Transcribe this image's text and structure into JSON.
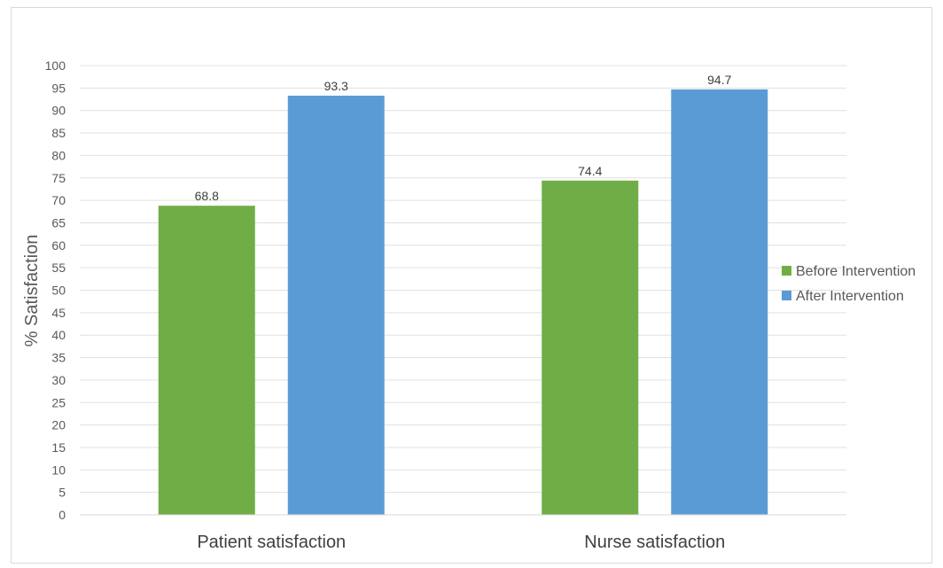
{
  "chart_data": {
    "type": "bar",
    "categories": [
      "Patient satisfaction",
      "Nurse satisfaction"
    ],
    "series": [
      {
        "name": "Before Intervention",
        "values": [
          68.8,
          74.4
        ],
        "color": "#70ad47"
      },
      {
        "name": "After Intervention",
        "values": [
          93.3,
          94.7
        ],
        "color": "#5b9bd5"
      }
    ],
    "data_labels": [
      [
        "68.8",
        "74.4"
      ],
      [
        "93.3",
        "94.7"
      ]
    ],
    "title": "",
    "xlabel": "",
    "ylabel": "% Satisfaction",
    "ylim": [
      0,
      100
    ],
    "yticks": [
      0,
      5,
      10,
      15,
      20,
      25,
      30,
      35,
      40,
      45,
      50,
      55,
      60,
      65,
      70,
      75,
      80,
      85,
      90,
      95,
      100
    ],
    "grid": true,
    "legend_position": "right"
  }
}
